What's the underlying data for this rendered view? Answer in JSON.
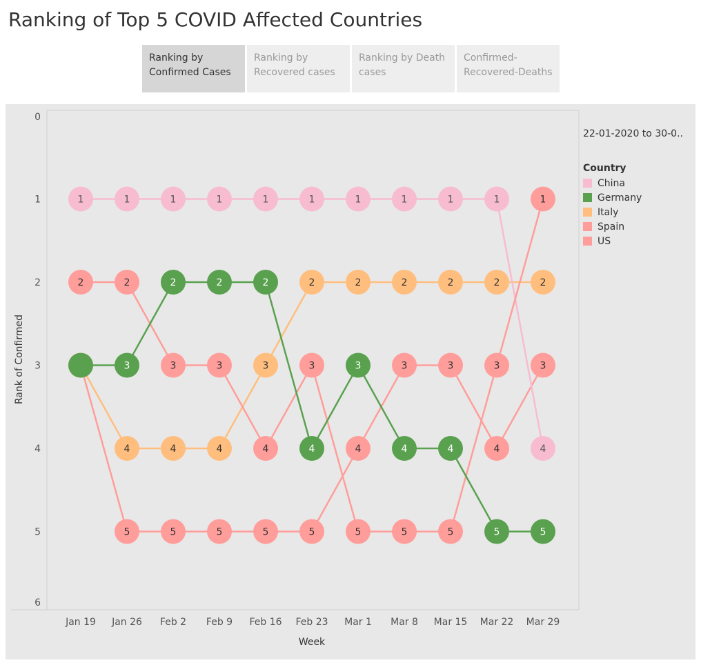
{
  "title": "Ranking of Top 5 COVID Affected Countries",
  "tabs": [
    {
      "label": "Ranking by Confirmed Cases",
      "active": true
    },
    {
      "label": "Ranking by Recovered cases",
      "active": false
    },
    {
      "label": "Ranking by Death cases",
      "active": false
    },
    {
      "label": "Confirmed-Recovered-Deaths",
      "active": false
    }
  ],
  "date_range": "22-01-2020 to 30-0..",
  "legend": {
    "title": "Country",
    "items": [
      {
        "name": "China",
        "color": "#f7bcd0"
      },
      {
        "name": "Germany",
        "color": "#59a14f"
      },
      {
        "name": "Italy",
        "color": "#ffbe7d"
      },
      {
        "name": "Spain",
        "color": "#ff9d9a"
      },
      {
        "name": "US",
        "color": "#ff9d9a"
      }
    ]
  },
  "chart_data": {
    "type": "line",
    "xlabel": "Week",
    "ylabel": "Rank of Confirmed",
    "x": [
      "Jan 19",
      "Jan 26",
      "Feb 2",
      "Feb 9",
      "Feb 16",
      "Feb 23",
      "Mar 1",
      "Mar 8",
      "Mar 15",
      "Mar 22",
      "Mar 29"
    ],
    "ylim": [
      0,
      6
    ],
    "y_reversed": true,
    "yticks": [
      0,
      1,
      2,
      3,
      4,
      5,
      6
    ],
    "series": [
      {
        "name": "China",
        "color": "#f7bcd0",
        "values": [
          1,
          1,
          1,
          1,
          1,
          1,
          1,
          1,
          1,
          1,
          4
        ]
      },
      {
        "name": "Germany",
        "color": "#59a14f",
        "values": [
          3,
          3,
          2,
          2,
          2,
          4,
          3,
          4,
          4,
          5,
          5
        ]
      },
      {
        "name": "Italy",
        "color": "#ffbe7d",
        "values": [
          3,
          4,
          4,
          4,
          3,
          2,
          2,
          2,
          2,
          2,
          2
        ]
      },
      {
        "name": "Spain",
        "color": "#ff9d9a",
        "values": [
          3,
          5,
          5,
          5,
          5,
          5,
          4,
          3,
          3,
          4,
          3
        ]
      },
      {
        "name": "US",
        "color": "#ff9d9a",
        "values": [
          2,
          2,
          3,
          3,
          4,
          3,
          5,
          5,
          5,
          3,
          1
        ]
      }
    ],
    "point_labels": {
      "China": [
        1,
        1,
        1,
        1,
        1,
        1,
        1,
        1,
        1,
        1,
        4
      ],
      "Germany": [
        null,
        3,
        2,
        2,
        2,
        4,
        3,
        4,
        4,
        5,
        5
      ],
      "Italy": [
        null,
        4,
        4,
        4,
        3,
        2,
        2,
        2,
        2,
        2,
        2
      ],
      "Spain": [
        null,
        5,
        5,
        5,
        5,
        5,
        4,
        3,
        3,
        4,
        3
      ],
      "US": [
        2,
        2,
        3,
        3,
        4,
        3,
        5,
        5,
        5,
        3,
        1
      ]
    },
    "draw_order": [
      "Spain",
      "Italy",
      "China",
      "US",
      "Germany"
    ]
  }
}
